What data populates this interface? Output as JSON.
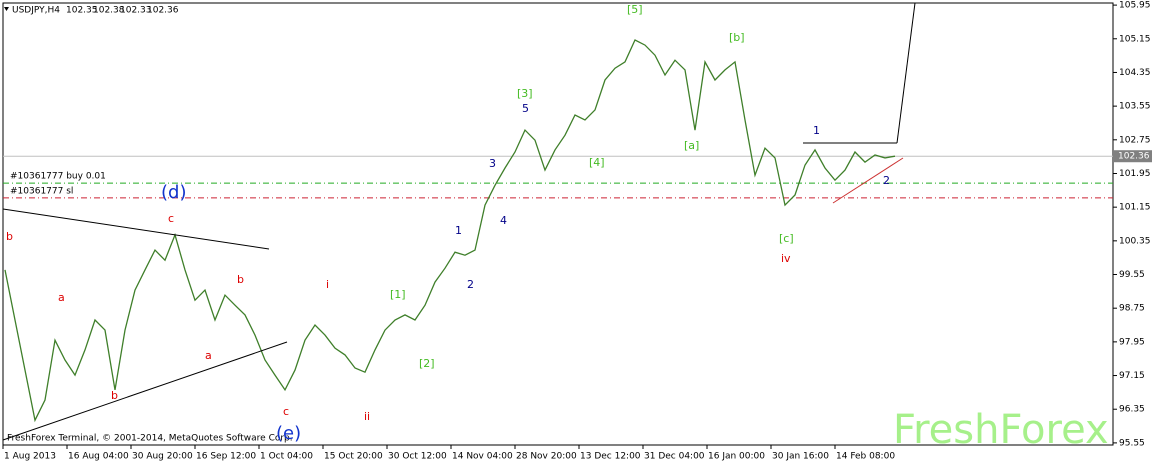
{
  "header": {
    "symbol": "USDJPY,H4",
    "open": 102.35,
    "high": 102.38,
    "low": 102.33,
    "close": 102.36
  },
  "chart_data": {
    "type": "line",
    "color": "#3f7f2a",
    "values": [
      99.66,
      98.47,
      97.28,
      96.09,
      96.57,
      97.99,
      97.52,
      97.16,
      97.76,
      98.47,
      98.23,
      96.81,
      98.23,
      99.18,
      99.66,
      100.13,
      99.89,
      100.49,
      99.66,
      98.94,
      99.18,
      98.47,
      99.06,
      98.82,
      98.59,
      98.11,
      97.52,
      97.16,
      96.81,
      97.28,
      97.99,
      98.35,
      98.11,
      97.8,
      97.64,
      97.33,
      97.23,
      97.76,
      98.23,
      98.47,
      98.59,
      98.47,
      98.82,
      99.37,
      99.7,
      100.08,
      100.01,
      100.13,
      101.2,
      101.67,
      102.08,
      102.46,
      102.98,
      102.74,
      102.03,
      102.51,
      102.86,
      103.34,
      103.22,
      103.46,
      104.17,
      104.45,
      104.6,
      105.12,
      105.0,
      104.76,
      104.29,
      104.64,
      104.41,
      102.98,
      104.6,
      104.17,
      104.41,
      104.6,
      103.22,
      101.91,
      102.55,
      102.32,
      101.2,
      101.44,
      102.15,
      102.51,
      102.08,
      101.79,
      102.03,
      102.46,
      102.22,
      102.39,
      102.32,
      102.36
    ],
    "ylim": [
      95.5,
      106.0
    ],
    "yticks": [
      105.95,
      105.15,
      104.35,
      103.55,
      102.75,
      101.95,
      101.15,
      100.35,
      99.55,
      98.75,
      97.95,
      97.15,
      96.35,
      95.55
    ],
    "xticks": [
      "1 Aug 2013",
      "16 Aug 04:00",
      "30 Aug 20:00",
      "16 Sep 12:00",
      "1 Oct 04:00",
      "15 Oct 20:00",
      "30 Oct 12:00",
      "14 Nov 04:00",
      "28 Nov 20:00",
      "13 Dec 12:00",
      "31 Dec 04:00",
      "16 Jan 00:00",
      "30 Jan 16:00",
      "14 Feb 08:00"
    ],
    "orders": [
      {
        "label": "#10361777 buy 0.01",
        "level": 101.72,
        "color": "#22aa22"
      },
      {
        "label": "#10361777 sl",
        "level": 101.37,
        "color": "#cc2233"
      }
    ],
    "annotations": [
      {
        "text": "b",
        "color": "#dd0000"
      },
      {
        "text": "a",
        "color": "#dd0000"
      },
      {
        "text": "b",
        "color": "#dd0000"
      },
      {
        "text": "c",
        "color": "#dd0000"
      },
      {
        "text": "a",
        "color": "#dd0000"
      },
      {
        "text": "b",
        "color": "#dd0000"
      },
      {
        "text": "c",
        "color": "#dd0000"
      },
      {
        "text": "(d)",
        "color": "#1133cc"
      },
      {
        "text": "(e)",
        "color": "#1133cc"
      },
      {
        "text": "i",
        "color": "#dd0000"
      },
      {
        "text": "ii",
        "color": "#dd0000"
      },
      {
        "text": "[1]",
        "color": "#44bb22"
      },
      {
        "text": "[2]",
        "color": "#44bb22"
      },
      {
        "text": "1",
        "color": "#000088"
      },
      {
        "text": "2",
        "color": "#000088"
      },
      {
        "text": "3",
        "color": "#000088"
      },
      {
        "text": "4",
        "color": "#000088"
      },
      {
        "text": "5",
        "color": "#000088"
      },
      {
        "text": "[3]",
        "color": "#44bb22"
      },
      {
        "text": "[4]",
        "color": "#44bb22"
      },
      {
        "text": "[5]",
        "color": "#44bb22"
      },
      {
        "text": "[a]",
        "color": "#44bb22"
      },
      {
        "text": "[b]",
        "color": "#44bb22"
      },
      {
        "text": "[c]",
        "color": "#44bb22"
      },
      {
        "text": "iv",
        "color": "#dd0000"
      },
      {
        "text": "1",
        "color": "#000088"
      },
      {
        "text": "2",
        "color": "#000088"
      }
    ],
    "copyright": "FreshForex Terminal, © 2001-2014, MetaQuotes Software Corp.",
    "watermark": "FreshForex"
  }
}
